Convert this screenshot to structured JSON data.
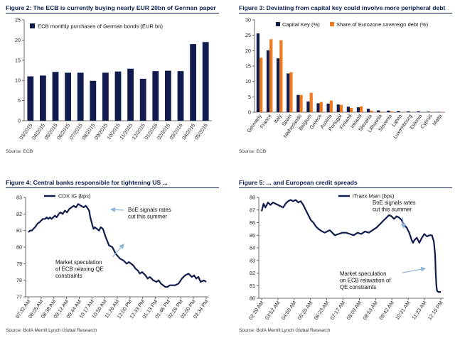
{
  "colors": {
    "navy": "#0f1c4d",
    "orange": "#f07a1e",
    "title": "#0a1f52",
    "arrow": "#8fb4dc"
  },
  "figures": [
    {
      "title": "Figure 2: The ECB is currently buying nearly EUR 20bn of German paper",
      "source": "Source: ECB"
    },
    {
      "title": "Figure 3: Deviating from capital key could involve more peripheral debt",
      "source": "Source: ECB"
    },
    {
      "title": "Figure 4: Central banks responsible for tightening US ...",
      "source": "Source: BofA Merrill Lynch Global Research"
    },
    {
      "title": "Figure 5: ... and European credit spreads",
      "source": "Source: BofA Merrill Lynch Global Research"
    }
  ],
  "chart_data": [
    {
      "type": "bar",
      "title": "Figure 2: The ECB is currently buying nearly EUR 20bn of German paper",
      "legend": [
        "ECB monthly purchases of German bonds (EUR bn)"
      ],
      "legend_position": "top-left",
      "categories": [
        "03/2015",
        "04/2015",
        "05/2015",
        "06/2015",
        "07/2015",
        "08/2015",
        "09/2015",
        "10/2015",
        "11/2015",
        "12/2015",
        "01/2016",
        "02/2016",
        "03/2016",
        "04/2016",
        "05/2016"
      ],
      "series": [
        {
          "name": "ECB monthly purchases of German bonds (EUR bn)",
          "values": [
            11.0,
            11.2,
            12.1,
            11.9,
            11.9,
            9.9,
            11.9,
            12.2,
            12.9,
            10.4,
            12.3,
            12.4,
            12.3,
            19.0,
            19.5
          ]
        }
      ],
      "yticks": [
        0,
        5,
        10,
        15,
        20,
        25
      ],
      "ylim": [
        0,
        25
      ],
      "grid": false
    },
    {
      "type": "bar",
      "title": "Figure 3: Deviating from capital key could involve more peripheral debt",
      "legend": [
        "Capital Key (%)",
        "Share of Eurozone sovereign debt (%)"
      ],
      "legend_position": "top",
      "categories": [
        "Germany",
        "France",
        "Italy",
        "Spain",
        "Netherlands",
        "Belgium",
        "Greece",
        "Austria",
        "Portugal",
        "Finland",
        "Ireland",
        "Slovakia",
        "Lithuania",
        "Slovenia",
        "Latvia",
        "Luxembourg",
        "Estonia",
        "Cyprus",
        "Malta"
      ],
      "series": [
        {
          "name": "Capital Key (%)",
          "values": [
            25.6,
            20.1,
            17.5,
            12.6,
            5.6,
            3.5,
            2.9,
            2.8,
            2.5,
            1.8,
            1.6,
            1.1,
            0.6,
            0.5,
            0.4,
            0.3,
            0.3,
            0.2,
            0.1
          ]
        },
        {
          "name": "Share of Eurozone sovereign debt (%)",
          "values": [
            17.7,
            23.7,
            23.4,
            13.0,
            5.6,
            6.3,
            3.3,
            3.8,
            2.4,
            1.4,
            1.9,
            0.5,
            0.2,
            0.3,
            0.1,
            0.1,
            0.0,
            0.1,
            0.1
          ]
        }
      ],
      "yticks": [
        0,
        5,
        10,
        15,
        20,
        25,
        30
      ],
      "ylim": [
        0,
        30
      ],
      "grid": false
    },
    {
      "type": "line",
      "title": "Figure 4: Central banks responsible for tightening US ...",
      "legend": [
        "CDX IG (bps)"
      ],
      "legend_position": "top-left",
      "xticks": [
        "07:32 AM",
        "08:05 AM",
        "08:38 AM",
        "09:12 AM",
        "09:44 AM",
        "10:17 AM",
        "10:50 AM",
        "11:26 AM",
        "12:00 PM",
        "12:33 PM",
        "01:13 PM",
        "01:46 PM",
        "02:26 PM",
        "03:00 PM",
        "03:34 PM"
      ],
      "yticks": [
        77,
        78,
        79,
        80,
        81,
        82,
        83
      ],
      "ylim": [
        77,
        83
      ],
      "series": [
        {
          "name": "CDX IG (bps)",
          "x": [
            0,
            3,
            6,
            9,
            12,
            16,
            20,
            26,
            30,
            33,
            36,
            39,
            42,
            45,
            48,
            51,
            55,
            58,
            62,
            66,
            70,
            74,
            78,
            82,
            86,
            90,
            95,
            100,
            104,
            108,
            110,
            112,
            116,
            118,
            120,
            124,
            128,
            131,
            135,
            140,
            146,
            152,
            158,
            166,
            172,
            178,
            182,
            186,
            190,
            194,
            198,
            202,
            206,
            212,
            216,
            220,
            226,
            232,
            236,
            240,
            244,
            248,
            252,
            256,
            260,
            266,
            272,
            278,
            284,
            290,
            296,
            300,
            304,
            308,
            312,
            318,
            322
          ],
          "y": [
            80.9,
            81.0,
            81.0,
            81.1,
            81.2,
            81.4,
            81.5,
            81.7,
            81.7,
            81.8,
            81.7,
            81.8,
            81.7,
            81.8,
            81.9,
            81.8,
            82.0,
            82.1,
            82.0,
            82.2,
            82.1,
            82.3,
            82.4,
            82.5,
            82.4,
            82.6,
            82.5,
            82.4,
            82.5,
            82.3,
            82.2,
            81.8,
            81.3,
            81.1,
            81.2,
            81.1,
            81.0,
            81.2,
            81.1,
            80.6,
            80.1,
            80.0,
            79.6,
            79.3,
            79.2,
            79.0,
            79.1,
            79.0,
            78.9,
            78.7,
            78.6,
            78.4,
            78.5,
            78.3,
            78.1,
            78.2,
            78.0,
            77.9,
            78.0,
            77.8,
            77.7,
            77.6,
            77.6,
            77.7,
            77.7,
            77.7,
            77.8,
            78.1,
            78.3,
            78.4,
            78.2,
            78.3,
            78.1,
            78.2,
            77.9,
            78.0,
            77.9
          ]
        }
      ],
      "annotations": [
        {
          "text": [
            "BoE signals rates",
            "cut this summer"
          ]
        },
        {
          "text": [
            "Market speculation",
            "of ECB relaxing QE",
            "constraints"
          ]
        }
      ],
      "grid": false
    },
    {
      "type": "line",
      "title": "Figure 5: ... and European credit spreads",
      "legend": [
        "iTraxx Main (bps)"
      ],
      "legend_position": "top-center",
      "xticks": [
        "02:30 AM",
        "03:52 AM",
        "04:50 AM",
        "05:35 AM",
        "06:23 AM",
        "07:17 AM",
        "08:09 AM",
        "08:53 AM",
        "09:42 AM",
        "10:31 AM",
        "11:23 AM",
        "12:15 PM"
      ],
      "yticks": [
        80,
        81,
        82,
        83,
        84,
        85,
        86,
        87,
        88
      ],
      "ylim": [
        80,
        88
      ],
      "series": [
        {
          "name": "iTraxx Main (bps)",
          "x": [
            0,
            3,
            6,
            10,
            14,
            18,
            22,
            26,
            30,
            34,
            38,
            42,
            46,
            50,
            54,
            58,
            62,
            66,
            70,
            74,
            78,
            82,
            86,
            90,
            96,
            100,
            104,
            108,
            112,
            116,
            122,
            128,
            134,
            140,
            146,
            152,
            158,
            164,
            170,
            176,
            182,
            188,
            194,
            198,
            202,
            206,
            210,
            214,
            218,
            222,
            226,
            230,
            234,
            236,
            238,
            240,
            242,
            246,
            250,
            254,
            258,
            262,
            266,
            270,
            273,
            275,
            276,
            277,
            278,
            280,
            284
          ],
          "y": [
            86.9,
            87.5,
            87.2,
            87.6,
            87.4,
            87.6,
            87.5,
            87.4,
            87.3,
            87.2,
            87.5,
            87.7,
            87.8,
            87.7,
            87.8,
            87.6,
            87.7,
            87.4,
            87.0,
            86.6,
            86.2,
            86.0,
            85.7,
            85.5,
            85.3,
            85.2,
            85.3,
            85.4,
            85.2,
            85.0,
            85.1,
            85.2,
            85.2,
            85.1,
            85.0,
            85.2,
            85.1,
            85.3,
            85.2,
            85.4,
            85.6,
            85.9,
            86.2,
            86.4,
            86.6,
            86.5,
            86.3,
            86.5,
            86.4,
            86.2,
            85.8,
            85.6,
            85.2,
            84.9,
            84.6,
            84.4,
            84.6,
            84.8,
            84.4,
            84.8,
            85.1,
            84.9,
            85.0,
            85.0,
            84.5,
            83.5,
            82.0,
            81.0,
            80.6,
            80.5,
            80.5
          ]
        }
      ],
      "annotations": [
        {
          "text": [
            "BoE signals rates",
            "cut this summer"
          ]
        },
        {
          "text": [
            "Market speculation",
            "on ECB relaxation of",
            "QE constraints"
          ]
        }
      ],
      "grid": false
    }
  ]
}
